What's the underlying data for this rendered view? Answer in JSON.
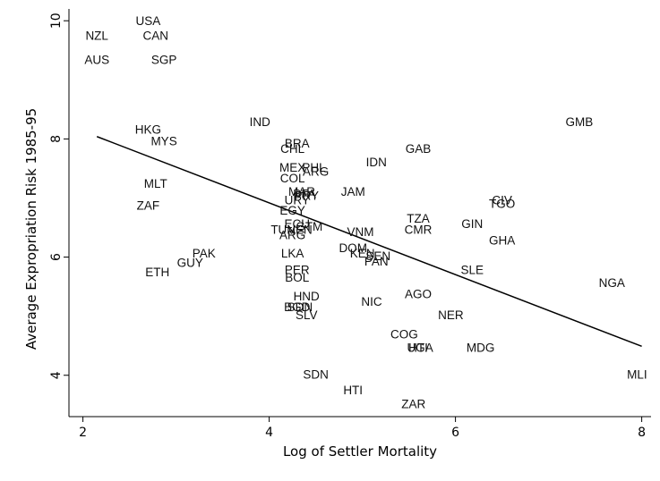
{
  "chart_data": {
    "type": "scatter",
    "xlabel": "Log of Settler Mortality",
    "ylabel": "Average Expropriation Risk 1985-95",
    "xlim": [
      1.85,
      8.1
    ],
    "ylim": [
      3.3,
      10.2
    ],
    "xticks": [
      2,
      4,
      6,
      8
    ],
    "yticks": [
      4,
      6,
      8,
      10
    ],
    "grid": false,
    "marker": "country-code text labels",
    "points": [
      {
        "label": "USA",
        "x": 2.7,
        "y": 9.98
      },
      {
        "label": "NZL",
        "x": 2.15,
        "y": 9.73
      },
      {
        "label": "CAN",
        "x": 2.78,
        "y": 9.73
      },
      {
        "label": "AUS",
        "x": 2.15,
        "y": 9.32
      },
      {
        "label": "SGP",
        "x": 2.87,
        "y": 9.32
      },
      {
        "label": "IND",
        "x": 3.9,
        "y": 8.27
      },
      {
        "label": "GMB",
        "x": 7.33,
        "y": 8.27
      },
      {
        "label": "HKG",
        "x": 2.7,
        "y": 8.14
      },
      {
        "label": "MYS",
        "x": 2.87,
        "y": 7.95
      },
      {
        "label": "BRA",
        "x": 4.3,
        "y": 7.91
      },
      {
        "label": "CHL",
        "x": 4.25,
        "y": 7.82
      },
      {
        "label": "GAB",
        "x": 5.6,
        "y": 7.82
      },
      {
        "label": "IDN",
        "x": 5.15,
        "y": 7.59
      },
      {
        "label": "MEX",
        "x": 4.25,
        "y": 7.5
      },
      {
        "label": "PHL",
        "x": 4.48,
        "y": 7.5
      },
      {
        "label": "ARG",
        "x": 4.5,
        "y": 7.43
      },
      {
        "label": "MLT",
        "x": 2.78,
        "y": 7.23
      },
      {
        "label": "COL",
        "x": 4.25,
        "y": 7.32
      },
      {
        "label": "MAR",
        "x": 4.35,
        "y": 7.09
      },
      {
        "label": "BFA",
        "x": 4.38,
        "y": 7.05
      },
      {
        "label": "PRY",
        "x": 4.4,
        "y": 7.02
      },
      {
        "label": "JAM",
        "x": 4.9,
        "y": 7.09
      },
      {
        "label": "URY",
        "x": 4.3,
        "y": 6.95
      },
      {
        "label": "CIV",
        "x": 6.5,
        "y": 6.95
      },
      {
        "label": "TGO",
        "x": 6.5,
        "y": 6.89
      },
      {
        "label": "ZAF",
        "x": 2.7,
        "y": 6.86
      },
      {
        "label": "EGY",
        "x": 4.25,
        "y": 6.77
      },
      {
        "label": "TZA",
        "x": 5.6,
        "y": 6.64
      },
      {
        "label": "GIN",
        "x": 6.18,
        "y": 6.55
      },
      {
        "label": "ECU",
        "x": 4.3,
        "y": 6.55
      },
      {
        "label": "CMR",
        "x": 5.6,
        "y": 6.45
      },
      {
        "label": "TUN",
        "x": 4.15,
        "y": 6.45
      },
      {
        "label": "VEN",
        "x": 4.33,
        "y": 6.45
      },
      {
        "label": "GTM",
        "x": 4.43,
        "y": 6.5
      },
      {
        "label": "VNM",
        "x": 4.98,
        "y": 6.41
      },
      {
        "label": "ARG",
        "x": 4.25,
        "y": 6.36
      },
      {
        "label": "GHA",
        "x": 6.5,
        "y": 6.27
      },
      {
        "label": "DOM",
        "x": 4.9,
        "y": 6.14
      },
      {
        "label": "PAK",
        "x": 3.3,
        "y": 6.05
      },
      {
        "label": "LKA",
        "x": 4.25,
        "y": 6.05
      },
      {
        "label": "KEN",
        "x": 5.0,
        "y": 6.05
      },
      {
        "label": "SEN",
        "x": 5.17,
        "y": 6.0
      },
      {
        "label": "PAN",
        "x": 5.15,
        "y": 5.91
      },
      {
        "label": "GUY",
        "x": 3.15,
        "y": 5.89
      },
      {
        "label": "SLE",
        "x": 6.18,
        "y": 5.77
      },
      {
        "label": "ETH",
        "x": 2.8,
        "y": 5.73
      },
      {
        "label": "PER",
        "x": 4.3,
        "y": 5.77
      },
      {
        "label": "BOL",
        "x": 4.3,
        "y": 5.64
      },
      {
        "label": "NGA",
        "x": 7.68,
        "y": 5.55
      },
      {
        "label": "AGO",
        "x": 5.6,
        "y": 5.36
      },
      {
        "label": "HND",
        "x": 4.4,
        "y": 5.32
      },
      {
        "label": "NIC",
        "x": 5.1,
        "y": 5.23
      },
      {
        "label": "BGD",
        "x": 4.3,
        "y": 5.14
      },
      {
        "label": "SDN",
        "x": 4.33,
        "y": 5.14
      },
      {
        "label": "NER",
        "x": 5.95,
        "y": 5.0
      },
      {
        "label": "SLV",
        "x": 4.4,
        "y": 5.0
      },
      {
        "label": "COG",
        "x": 5.45,
        "y": 4.68
      },
      {
        "label": "HTI",
        "x": 5.6,
        "y": 4.45
      },
      {
        "label": "UGA",
        "x": 5.62,
        "y": 4.45
      },
      {
        "label": "MDG",
        "x": 6.27,
        "y": 4.45
      },
      {
        "label": "MLI",
        "x": 7.95,
        "y": 4.0
      },
      {
        "label": "SDN",
        "x": 4.5,
        "y": 4.0
      },
      {
        "label": "HTI",
        "x": 4.9,
        "y": 3.73
      },
      {
        "label": "ZAR",
        "x": 5.55,
        "y": 3.5
      }
    ],
    "fit_line": {
      "x": [
        2.15,
        8.0
      ],
      "y": [
        8.04,
        4.49
      ]
    }
  }
}
